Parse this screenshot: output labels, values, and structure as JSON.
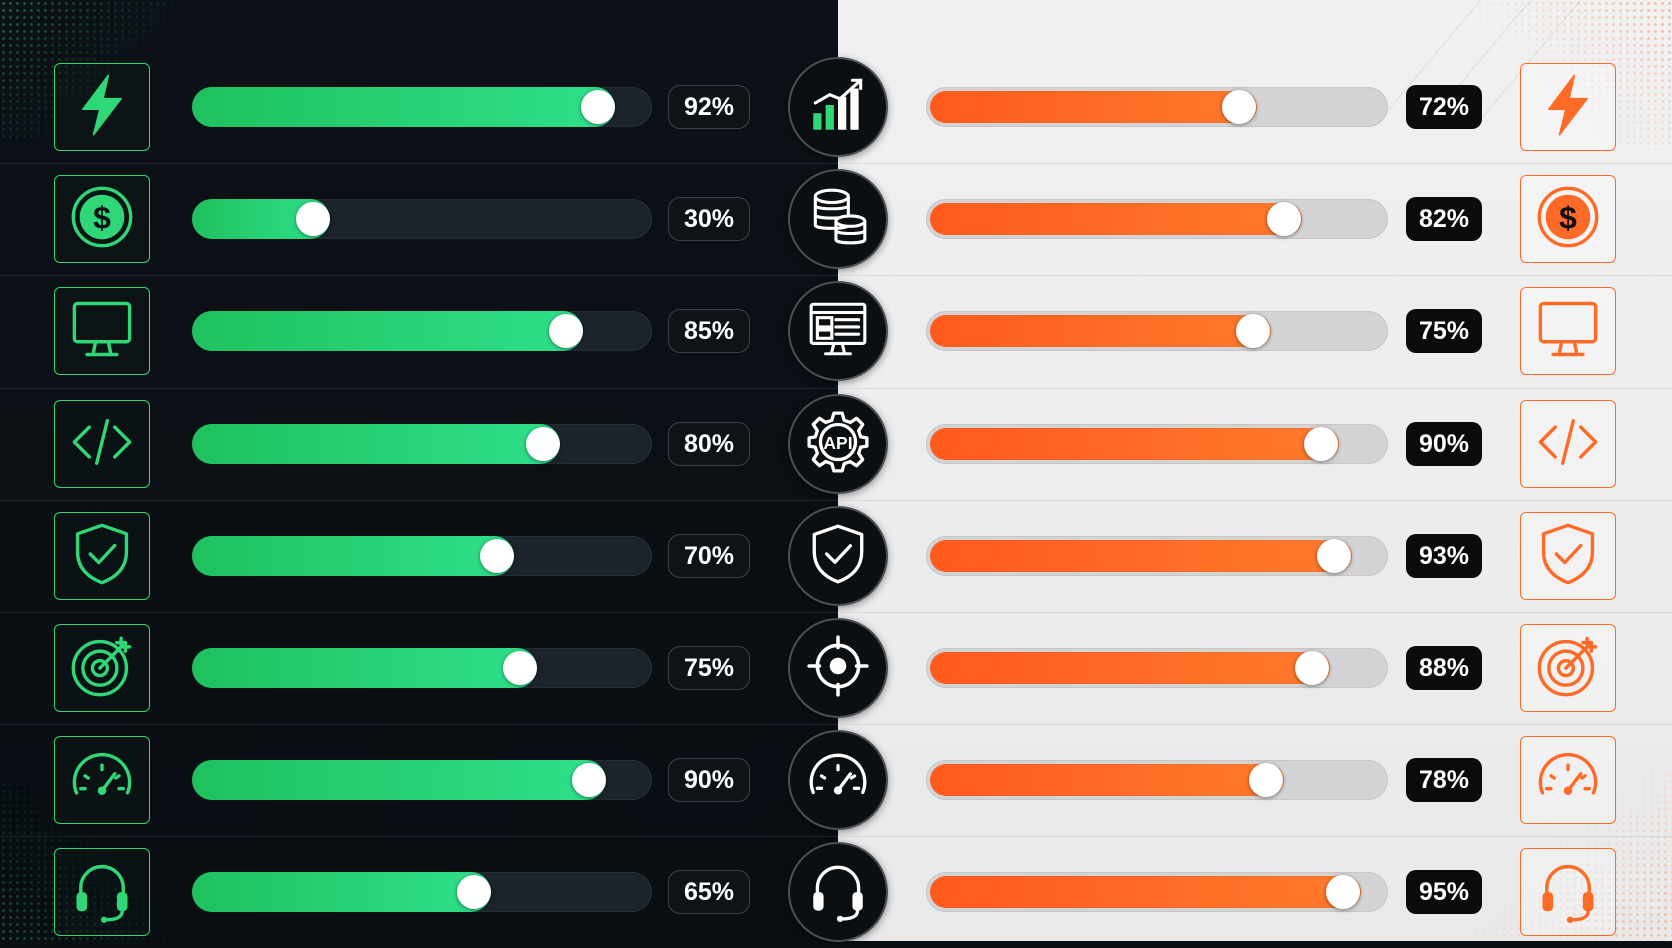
{
  "theme": {
    "green_accent": "#2fd776",
    "orange_accent": "#ff6a26",
    "left_background": "#0b1116",
    "right_background": "#f1f1f2"
  },
  "rows": [
    {
      "icon": "lightning-icon",
      "center_icon": "bar-chart-icon",
      "left": {
        "value": 0.92,
        "label": "92%"
      },
      "right": {
        "value": 0.72,
        "label": "72%"
      }
    },
    {
      "icon": "dollar-coin-icon",
      "center_icon": "coin-stack-icon",
      "left": {
        "value": 0.3,
        "label": "30%"
      },
      "right": {
        "value": 0.82,
        "label": "82%"
      }
    },
    {
      "icon": "monitor-icon",
      "center_icon": "dashboard-monitor-icon",
      "left": {
        "value": 0.85,
        "label": "85%"
      },
      "right": {
        "value": 0.75,
        "label": "75%"
      }
    },
    {
      "icon": "code-icon",
      "center_icon": "api-gear-icon",
      "center_text": "API",
      "left": {
        "value": 0.8,
        "label": "80%"
      },
      "right": {
        "value": 0.9,
        "label": "90%"
      }
    },
    {
      "icon": "shield-check-icon",
      "center_icon": "shield-check-icon",
      "left": {
        "value": 0.7,
        "label": "70%"
      },
      "right": {
        "value": 0.93,
        "label": "93%"
      }
    },
    {
      "icon": "target-icon",
      "center_icon": "crosshair-icon",
      "left": {
        "value": 0.75,
        "label": "75%"
      },
      "right": {
        "value": 0.88,
        "label": "88%"
      }
    },
    {
      "icon": "speedometer-icon",
      "center_icon": "speedometer-icon",
      "left": {
        "value": 0.9,
        "label": "90%"
      },
      "right": {
        "value": 0.78,
        "label": "78%"
      }
    },
    {
      "icon": "headset-icon",
      "center_icon": "headset-icon",
      "left": {
        "value": 0.65,
        "label": "65%"
      },
      "right": {
        "value": 0.95,
        "label": "95%"
      }
    }
  ]
}
